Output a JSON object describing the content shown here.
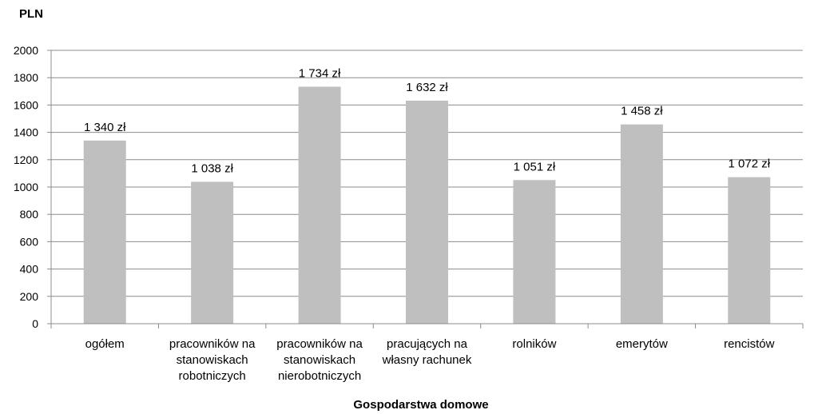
{
  "chart_data": {
    "type": "bar",
    "categories": [
      "ogółem",
      "pracowników na stanowiskach robotniczych",
      "pracowników na stanowiskach nierobotniczych",
      "pracujących na własny rachunek",
      "rolników",
      "emerytów",
      "rencistów"
    ],
    "category_label_lines": [
      [
        "ogółem"
      ],
      [
        "pracowników na",
        "stanowiskach",
        "robotniczych"
      ],
      [
        "pracowników na",
        "stanowiskach",
        "nierobotniczych"
      ],
      [
        "pracujących na",
        "własny rachunek"
      ],
      [
        "rolników"
      ],
      [
        "emerytów"
      ],
      [
        "rencistów"
      ]
    ],
    "values": [
      1340,
      1038,
      1734,
      1632,
      1051,
      1458,
      1072
    ],
    "data_labels": [
      "1 340 zł",
      "1 038 zł",
      "1 734 zł",
      "1 632 zł",
      "1 051 zł",
      "1 458 zł",
      "1 072 zł"
    ],
    "y_ticks": [
      0,
      200,
      400,
      600,
      800,
      1000,
      1200,
      1400,
      1600,
      1800,
      2000
    ],
    "ylim": [
      0,
      2000
    ],
    "ylabel": "PLN",
    "xlabel": "Gospodarstwa domowe",
    "title": "",
    "grid": true,
    "legend": "none",
    "bar_color": "#bfbfbf",
    "grid_color": "#8c8c8c",
    "axis_color": "#8c8c8c"
  }
}
